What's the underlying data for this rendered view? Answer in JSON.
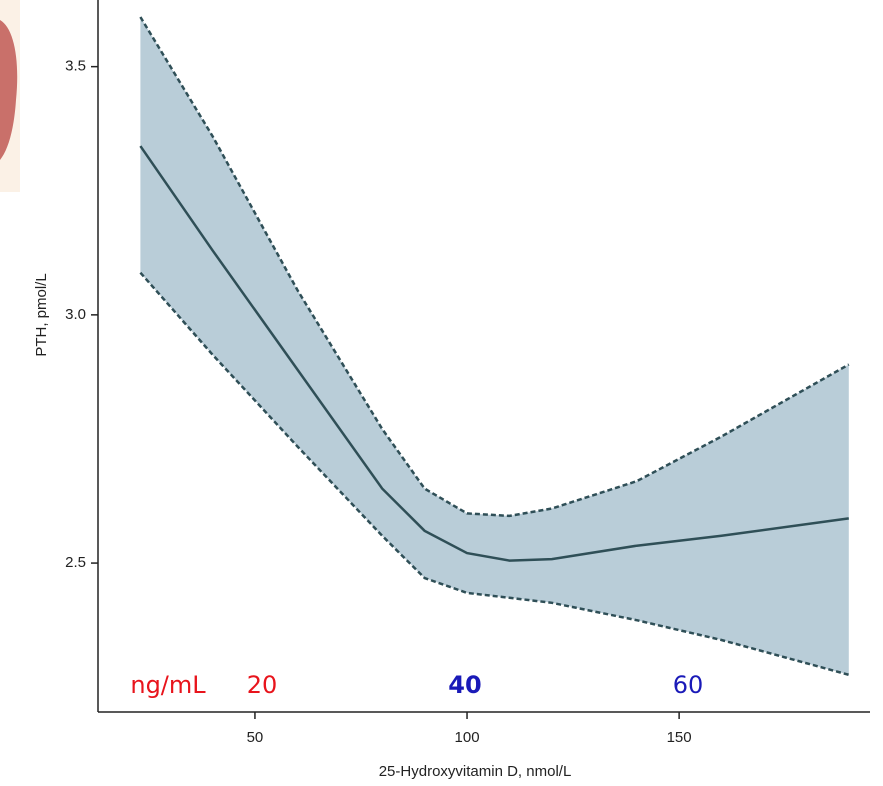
{
  "chart_data": {
    "type": "band-line",
    "x_label": "25-Hydroxyvitamin D, nmol/L",
    "y_label": "PTH, pmol/L",
    "x": [
      23,
      40,
      60,
      80,
      90,
      100,
      110,
      120,
      140,
      160,
      190
    ],
    "values": [
      3.34,
      3.13,
      2.89,
      2.65,
      2.565,
      2.52,
      2.505,
      2.508,
      2.535,
      2.555,
      2.59
    ],
    "upper": [
      3.6,
      3.36,
      3.05,
      2.77,
      2.65,
      2.6,
      2.595,
      2.61,
      2.665,
      2.755,
      2.9
    ],
    "lower": [
      3.085,
      2.92,
      2.735,
      2.555,
      2.47,
      2.44,
      2.43,
      2.42,
      2.385,
      2.345,
      2.275
    ],
    "color": "#2f4f57",
    "band_color": "#b9cdd8",
    "xlim": [
      13,
      195
    ],
    "xticks": [
      50,
      100,
      150
    ],
    "ylim": [
      2.2,
      3.6
    ],
    "yticks": [
      2.5,
      {
        "value": 3,
        "label": "3.0"
      },
      3.5
    ],
    "annotations": [
      {
        "text": "ng/mL",
        "color": "#e8141c",
        "bold": false
      },
      {
        "text": "20",
        "color": "#e8141c",
        "bold": false
      },
      {
        "text": "40",
        "color": "#1a1ab8",
        "bold": true
      },
      {
        "text": "60",
        "color": "#1a1ab8",
        "bold": false
      }
    ]
  }
}
